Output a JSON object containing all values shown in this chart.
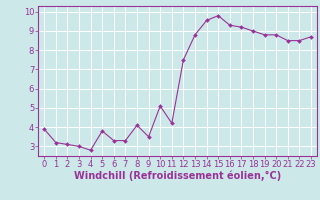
{
  "x": [
    0,
    1,
    2,
    3,
    4,
    5,
    6,
    7,
    8,
    9,
    10,
    11,
    12,
    13,
    14,
    15,
    16,
    17,
    18,
    19,
    20,
    21,
    22,
    23
  ],
  "y": [
    3.9,
    3.2,
    3.1,
    3.0,
    2.8,
    3.8,
    3.3,
    3.3,
    4.1,
    3.5,
    5.1,
    4.2,
    7.5,
    8.8,
    9.55,
    9.8,
    9.3,
    9.2,
    9.0,
    8.8,
    8.8,
    8.5,
    8.5,
    8.7
  ],
  "line_color": "#993399",
  "marker": "D",
  "marker_size": 2,
  "bg_color": "#cce8e8",
  "grid_color": "#ffffff",
  "xlabel": "Windchill (Refroidissement éolien,°C)",
  "xlim": [
    -0.5,
    23.5
  ],
  "ylim": [
    2.5,
    10.3
  ],
  "yticks": [
    3,
    4,
    5,
    6,
    7,
    8,
    9,
    10
  ],
  "xticks": [
    0,
    1,
    2,
    3,
    4,
    5,
    6,
    7,
    8,
    9,
    10,
    11,
    12,
    13,
    14,
    15,
    16,
    17,
    18,
    19,
    20,
    21,
    22,
    23
  ],
  "tick_color": "#993399",
  "label_color": "#993399",
  "tick_fontsize": 6,
  "xlabel_fontsize": 7
}
